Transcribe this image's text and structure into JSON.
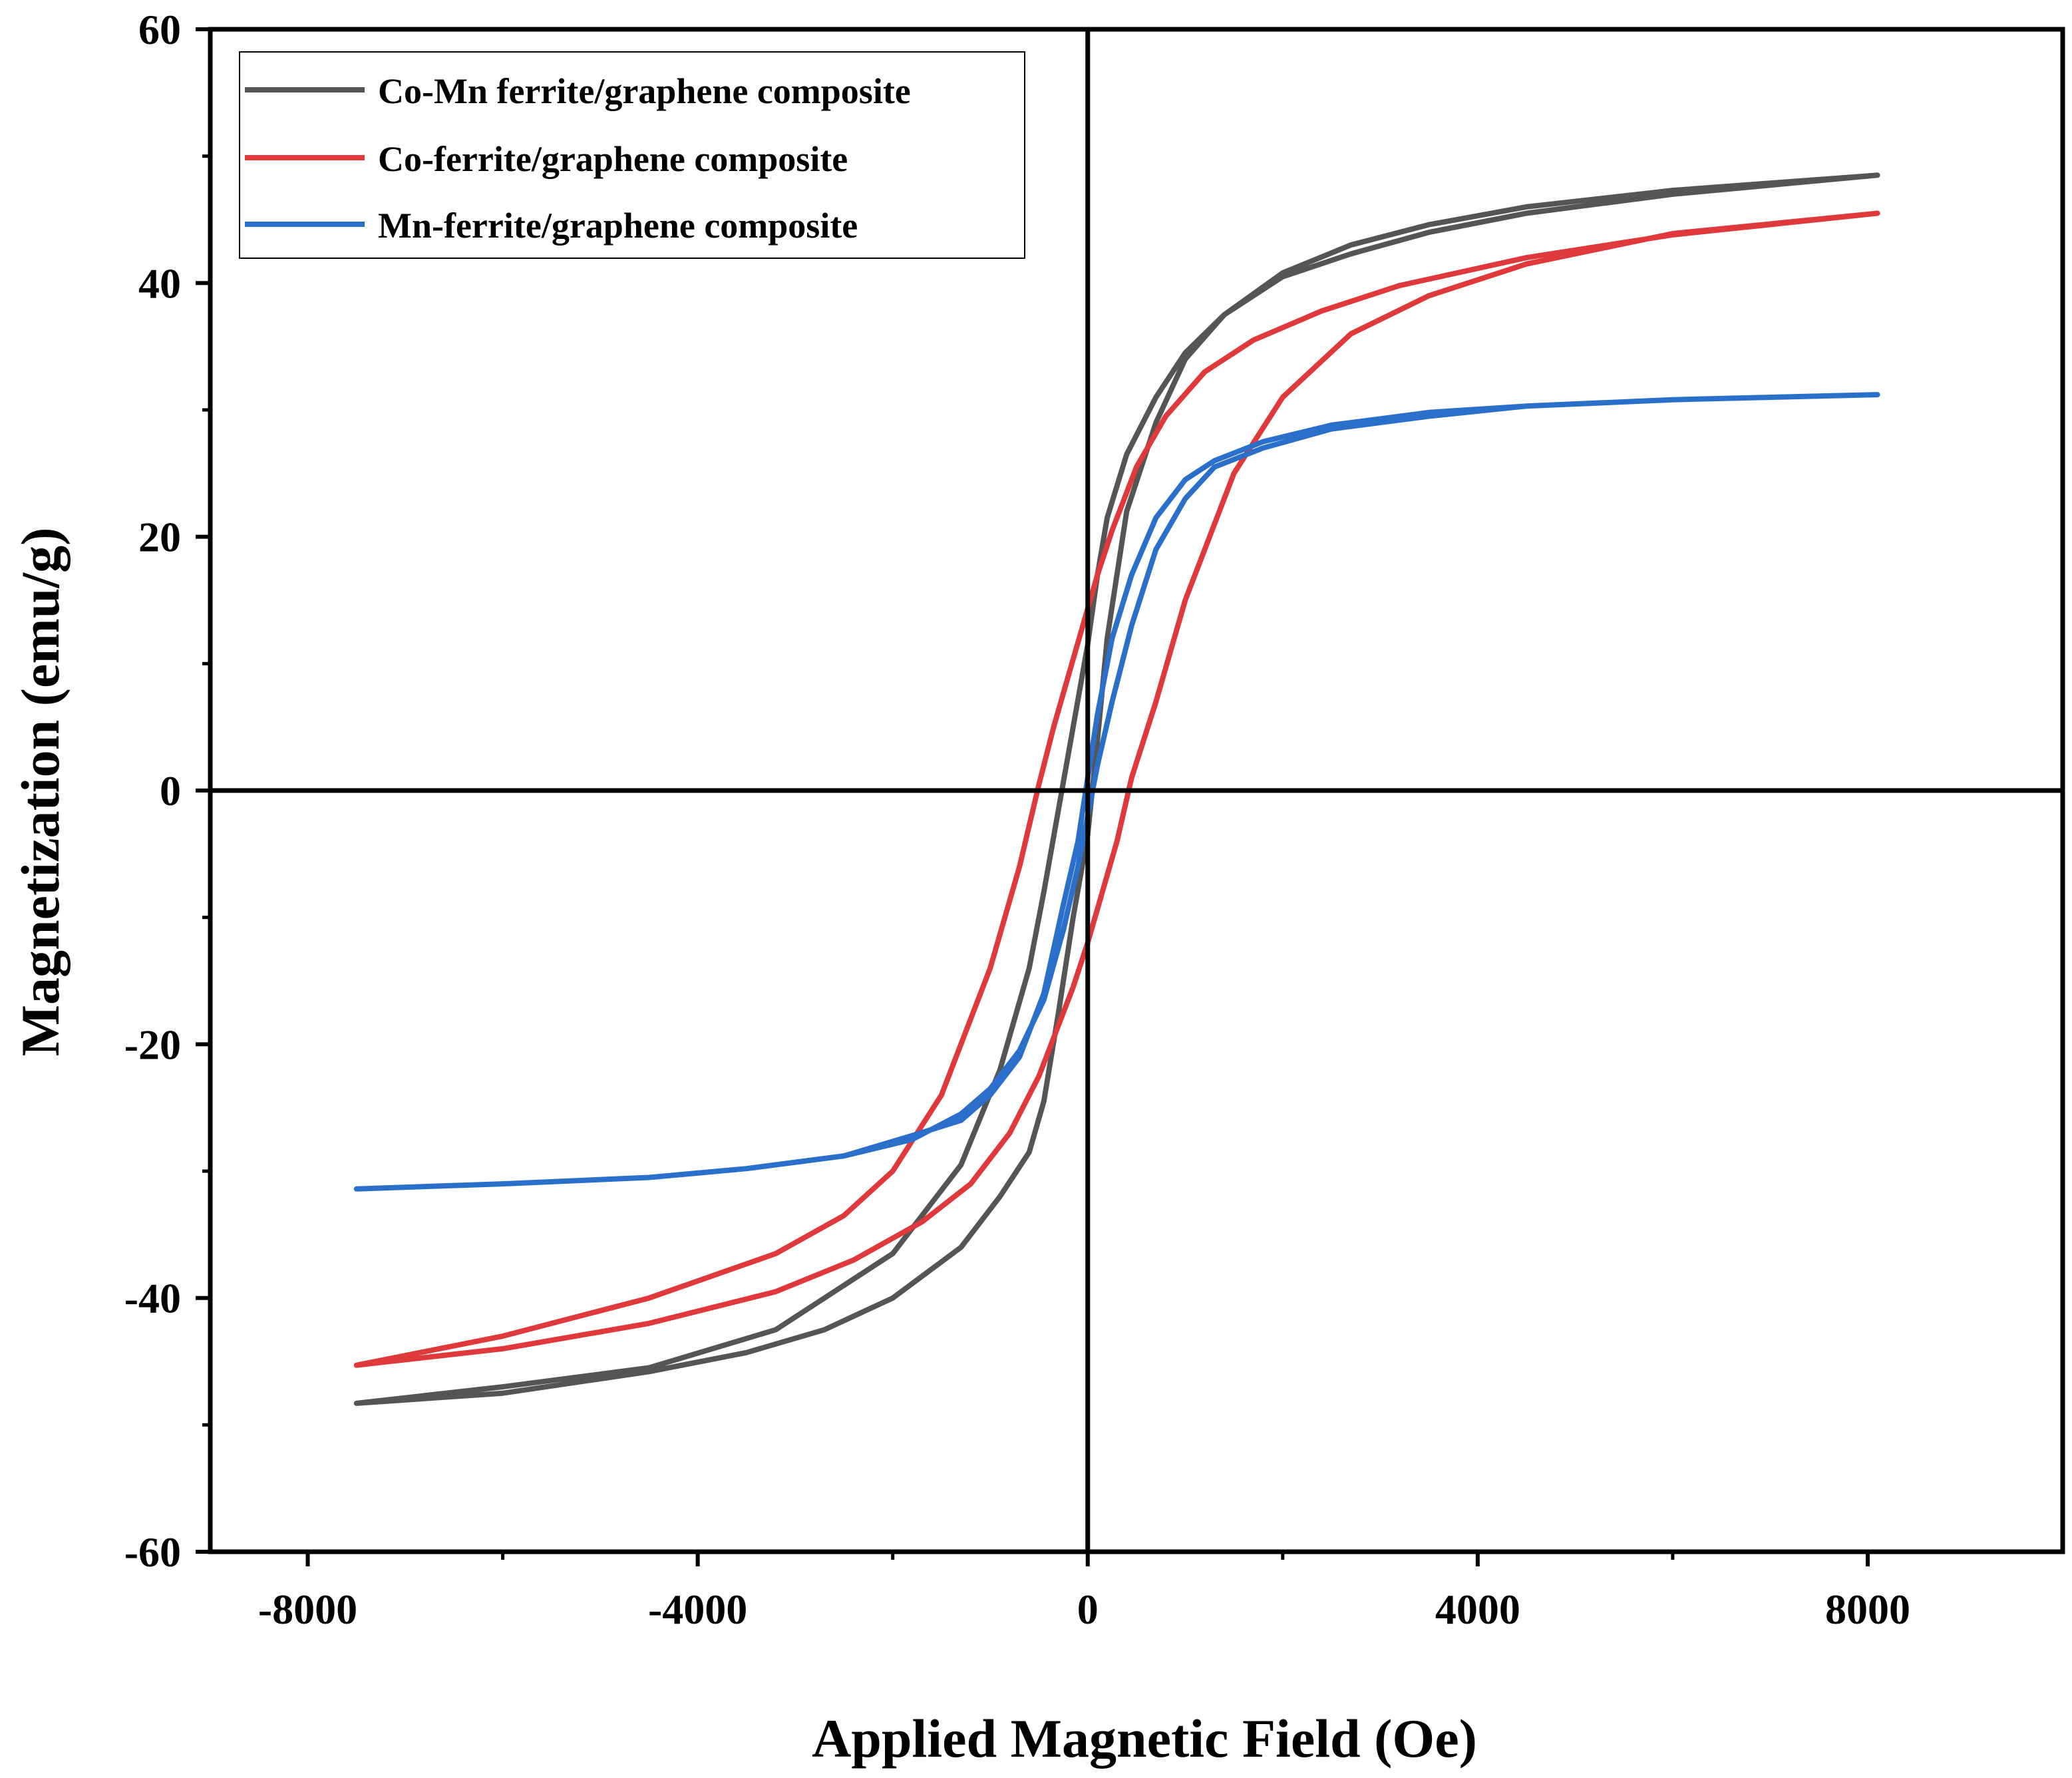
{
  "chart_data": {
    "type": "line",
    "title": "",
    "xlabel": "Applied Magnetic Field (Oe)",
    "ylabel": "Magnetization (emu/g)",
    "xlim": [
      -9000,
      10000
    ],
    "ylim": [
      -60,
      60
    ],
    "xticks": [
      -8000,
      -4000,
      0,
      4000,
      8000
    ],
    "xtick_labels": [
      "-8000",
      "-4000",
      "0",
      "4000",
      "8000"
    ],
    "yticks": [
      -60,
      -40,
      -20,
      0,
      20,
      40,
      60
    ],
    "ytick_labels": [
      "-60",
      "-40",
      "-20",
      "0",
      "20",
      "40",
      "60"
    ],
    "grid": false,
    "zero_lines": true,
    "legend_position": "top-left",
    "series": [
      {
        "name": "Co-Mn ferrite/graphene composite",
        "color": "#555555",
        "x": [
          -7500,
          -6000,
          -4500,
          -3200,
          -2000,
          -1300,
          -900,
          -600,
          -450,
          -300,
          -150,
          0,
          100,
          200,
          400,
          700,
          1000,
          1400,
          2000,
          2700,
          3500,
          4500,
          6000,
          8100,
          6000,
          4500,
          3500,
          2700,
          2000,
          1400,
          1000,
          700,
          400,
          200,
          100,
          0,
          -150,
          -300,
          -450,
          -600,
          -900,
          -1300,
          -2000,
          -2700,
          -3500,
          -4500,
          -6000,
          -7500
        ],
        "y": [
          -48.3,
          -47.0,
          -45.5,
          -42.5,
          -36.5,
          -29.5,
          -22.0,
          -14.0,
          -8.0,
          -1.5,
          5.0,
          11.5,
          17.0,
          21.5,
          26.5,
          31.0,
          34.5,
          37.5,
          40.5,
          42.3,
          44.0,
          45.5,
          47.0,
          48.5,
          47.3,
          46.0,
          44.6,
          43.0,
          40.8,
          37.5,
          34.0,
          29.0,
          22.0,
          12.0,
          4.0,
          -3.5,
          -10.0,
          -17.5,
          -24.5,
          -28.5,
          -32.0,
          -36.0,
          -40.0,
          -42.5,
          -44.3,
          -45.8,
          -47.5,
          -48.3
        ]
      },
      {
        "name": "Co-ferrite/graphene composite",
        "color": "#e0393c",
        "x": [
          -7500,
          -6000,
          -4500,
          -3200,
          -2500,
          -2000,
          -1500,
          -1000,
          -700,
          -500,
          -350,
          -200,
          -50,
          100,
          250,
          500,
          800,
          1200,
          1700,
          2400,
          3200,
          4500,
          6000,
          8100,
          6000,
          4500,
          3500,
          2700,
          2000,
          1500,
          1000,
          700,
          450,
          300,
          150,
          0,
          -150,
          -300,
          -500,
          -800,
          -1200,
          -1700,
          -2400,
          -3200,
          -4500,
          -6000,
          -7500
        ],
        "y": [
          -45.3,
          -43.0,
          -40.0,
          -36.5,
          -33.5,
          -30.0,
          -24.0,
          -14.0,
          -6.0,
          0.5,
          5.0,
          9.0,
          13.0,
          17.0,
          20.5,
          25.5,
          29.5,
          33.0,
          35.5,
          37.8,
          39.8,
          42.0,
          43.8,
          45.5,
          43.9,
          41.5,
          39.0,
          36.0,
          31.0,
          25.0,
          15.0,
          7.0,
          1.0,
          -4.0,
          -8.0,
          -12.0,
          -15.5,
          -18.5,
          -22.5,
          -27.0,
          -31.0,
          -34.0,
          -37.0,
          -39.5,
          -42.0,
          -44.0,
          -45.3
        ]
      },
      {
        "name": "Mn-ferrite/graphene composite",
        "color": "#2a6fc9",
        "x": [
          -7500,
          -6000,
          -4500,
          -3500,
          -2500,
          -1800,
          -1300,
          -1000,
          -700,
          -450,
          -250,
          -100,
          0,
          100,
          250,
          450,
          700,
          1000,
          1300,
          1800,
          2500,
          3500,
          4500,
          6000,
          8100,
          6000,
          4500,
          3500,
          2500,
          1800,
          1300,
          1000,
          700,
          450,
          250,
          100,
          0,
          -100,
          -250,
          -450,
          -700,
          -1000,
          -1300,
          -1800,
          -2500,
          -3500,
          -4500,
          -6000,
          -7500
        ],
        "y": [
          -31.4,
          -31.0,
          -30.5,
          -29.8,
          -28.8,
          -27.2,
          -26.0,
          -24.0,
          -21.0,
          -16.0,
          -9.0,
          -4.0,
          1.0,
          6.0,
          12.0,
          17.0,
          21.5,
          24.5,
          26.0,
          27.5,
          28.8,
          29.8,
          30.3,
          30.8,
          31.2,
          30.8,
          30.3,
          29.5,
          28.5,
          27.0,
          25.5,
          23.0,
          19.0,
          13.0,
          7.0,
          2.0,
          -2.0,
          -6.0,
          -11.0,
          -16.5,
          -20.5,
          -23.5,
          -25.5,
          -27.5,
          -28.8,
          -29.8,
          -30.5,
          -31.0,
          -31.4
        ]
      }
    ]
  }
}
